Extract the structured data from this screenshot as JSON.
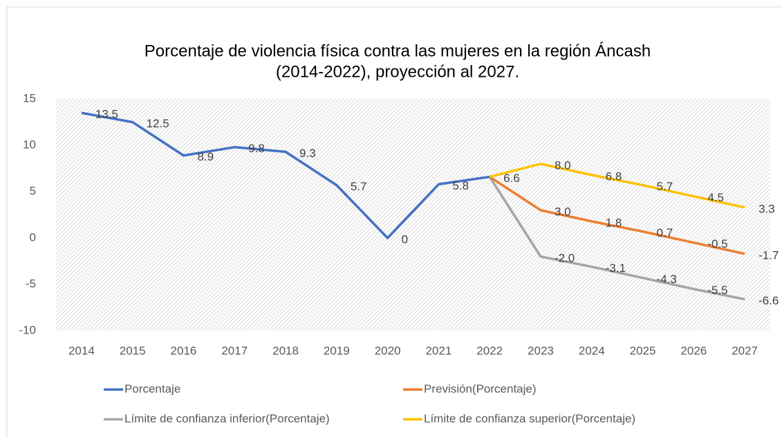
{
  "chart_data": {
    "type": "line",
    "title": [
      "Porcentaje de violencia física contra las mujeres en la región Áncash",
      "(2014-2022), proyección al 2027."
    ],
    "categories": [
      "2014",
      "2015",
      "2016",
      "2017",
      "2018",
      "2019",
      "2020",
      "2021",
      "2022",
      "2023",
      "2024",
      "2025",
      "2026",
      "2027"
    ],
    "ylim": [
      -10,
      15
    ],
    "yticks": [
      -10,
      -5,
      0,
      5,
      10,
      15
    ],
    "legend": "bottom",
    "series": [
      {
        "name": "Porcentaje",
        "color": "#4472c4",
        "values": [
          13.5,
          12.5,
          8.9,
          9.8,
          9.3,
          5.7,
          0,
          5.8,
          6.6,
          null,
          null,
          null,
          null,
          null
        ],
        "value_labels": [
          "13.5",
          "12.5",
          "8.9",
          "9.8",
          "9.3",
          "5.7",
          "0",
          "5.8",
          null,
          null,
          null,
          null,
          null,
          null
        ]
      },
      {
        "name": "Previsión(Porcentaje)",
        "color": "#ed7d31",
        "values": [
          null,
          null,
          null,
          null,
          null,
          null,
          null,
          null,
          6.6,
          3.0,
          1.8,
          0.7,
          -0.5,
          -1.7
        ],
        "value_labels": [
          null,
          null,
          null,
          null,
          null,
          null,
          null,
          null,
          "6.6",
          "3.0",
          "1.8",
          "0.7",
          "-0.5",
          "-1.7"
        ]
      },
      {
        "name": "Límite de confianza inferior(Porcentaje)",
        "color": "#a5a5a5",
        "values": [
          null,
          null,
          null,
          null,
          null,
          null,
          null,
          null,
          6.6,
          -2.0,
          -3.1,
          -4.3,
          -5.5,
          -6.6
        ],
        "value_labels": [
          null,
          null,
          null,
          null,
          null,
          null,
          null,
          null,
          null,
          "-2.0",
          "-3.1",
          "-4.3",
          "-5.5",
          "-6.6"
        ]
      },
      {
        "name": "Límite de confianza superior(Porcentaje)",
        "color": "#ffc000",
        "values": [
          null,
          null,
          null,
          null,
          null,
          null,
          null,
          null,
          6.6,
          8.0,
          6.8,
          5.7,
          4.5,
          3.3
        ],
        "value_labels": [
          null,
          null,
          null,
          null,
          null,
          null,
          null,
          null,
          null,
          "8.0",
          "6.8",
          "5.7",
          "4.5",
          "3.3"
        ]
      }
    ]
  }
}
